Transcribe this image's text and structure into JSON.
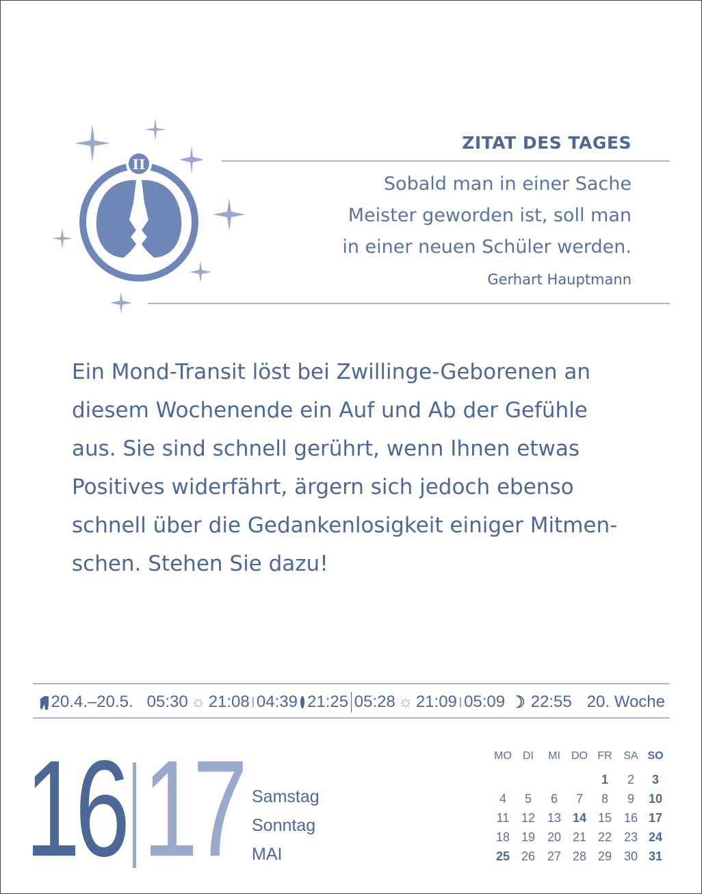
{
  "quote": {
    "heading": "ZITAT DES TAGES",
    "lines": [
      "Sobald man in einer Sache",
      "Meister geworden ist, soll man",
      "in einer neuen Schüler werden."
    ],
    "author": "Gerhart Hauptmann"
  },
  "horoscope": {
    "sign_icon": "gemini-icon",
    "lines": [
      "Ein Mond-Transit löst bei Zwillinge-Geborenen an",
      "diesem Wochenende ein Auf und Ab der Gefühle",
      "aus. Sie sind schnell gerührt, wenn Ihnen etwas",
      "Positives widerfährt, ärgern sich jedoch ebenso",
      "schnell über die Gedankenlosigkeit einiger Mitmen-",
      "schen. Stehen Sie dazu!"
    ]
  },
  "info_strip": {
    "zodiac_icon": "taurus-bull-icon",
    "zodiac_range": "20.4.–20.5.",
    "sat_sunrise": "05:30",
    "sat_sunset": "21:08",
    "sat_moonrise": "04:39",
    "sat_moon_icon": "new-moon-icon",
    "sat_moonset": "21:25",
    "sun_sunrise": "05:28",
    "sun_sunset": "21:09",
    "sun_moonrise": "05:09",
    "sun_moon_icon": "crescent-moon-icon",
    "sun_moonset": "22:55",
    "week": "20. Woche"
  },
  "date": {
    "day1": "16",
    "day2": "17",
    "weekday1": "Samstag",
    "weekday2": "Sonntag",
    "month": "MAI"
  },
  "mini_calendar": {
    "headers": [
      "MO",
      "DI",
      "MI",
      "DO",
      "FR",
      "SA",
      "SO"
    ],
    "rows": [
      [
        "",
        "",
        "",
        "",
        "1",
        "2",
        "3"
      ],
      [
        "4",
        "5",
        "6",
        "7",
        "8",
        "9",
        "10"
      ],
      [
        "11",
        "12",
        "13",
        "14",
        "15",
        "16",
        "17"
      ],
      [
        "18",
        "19",
        "20",
        "21",
        "22",
        "23",
        "24"
      ],
      [
        "25",
        "26",
        "27",
        "28",
        "29",
        "30",
        "31"
      ]
    ],
    "bold": [
      "1",
      "3",
      "10",
      "14",
      "17",
      "24",
      "25",
      "31"
    ]
  },
  "colors": {
    "primary": "#4d6796",
    "light": "#9aa8cc"
  }
}
